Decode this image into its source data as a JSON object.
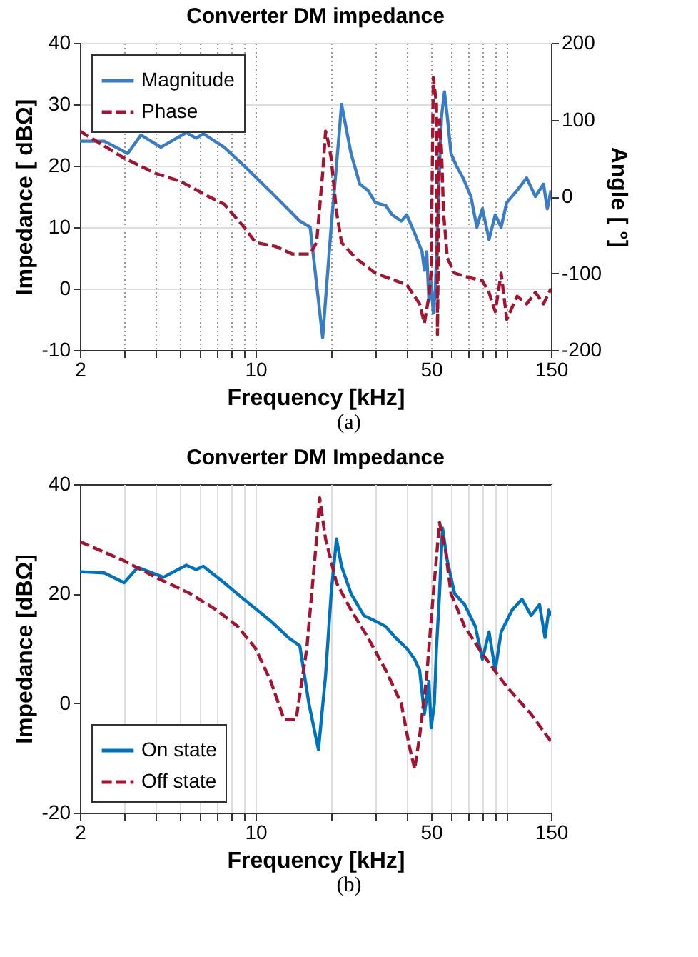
{
  "chart_data": [
    {
      "type": "line",
      "title": "Converter DM impedance",
      "xlabel": "Frequency [kHz]",
      "ylabel": "Impedance  [  dBΩ]",
      "y2label": "Angle  [  °]",
      "log": "x",
      "grid": true,
      "legend": "top left",
      "annotations": [
        "(a)"
      ],
      "xlim": [
        2,
        150
      ],
      "xticks": [
        2,
        {
          "value": 3,
          "label": null
        },
        {
          "value": 4,
          "label": null
        },
        {
          "value": 5,
          "label": null
        },
        {
          "value": 6,
          "label": null
        },
        {
          "value": 7,
          "label": null
        },
        {
          "value": 8,
          "label": null
        },
        {
          "value": 9,
          "label": null
        },
        10,
        {
          "value": 20,
          "label": null
        },
        {
          "value": 30,
          "label": null
        },
        {
          "value": 40,
          "label": null
        },
        50,
        {
          "value": 60,
          "label": null
        },
        {
          "value": 70,
          "label": null
        },
        {
          "value": 80,
          "label": null
        },
        {
          "value": 90,
          "label": null
        },
        {
          "value": 100,
          "label": null
        },
        150
      ],
      "ylim": [
        -10,
        40
      ],
      "yticks": [
        -10,
        0,
        10,
        20,
        30,
        40
      ],
      "y2lim": [
        -200,
        200
      ],
      "y2ticks": [
        -200,
        -100,
        0,
        100,
        200
      ],
      "series": [
        {
          "name": "Magnitude",
          "color": "#3a7dc4",
          "line_style": "solid",
          "x": [
            2,
            2.5,
            3.1,
            3.5,
            4.2,
            5.3,
            5.8,
            6.2,
            7.5,
            9,
            12,
            15,
            16.5,
            18.5,
            20,
            21.5,
            22,
            24,
            26,
            28,
            30,
            33,
            35,
            38,
            40,
            43,
            46,
            47,
            48,
            49,
            50,
            51,
            52,
            53,
            54,
            55,
            56.5,
            58,
            60,
            63,
            67,
            72,
            76,
            80,
            85,
            90,
            95,
            100,
            110,
            120,
            130,
            140,
            145,
            150
          ],
          "values": [
            24,
            24,
            22,
            25,
            23,
            25.4,
            24.5,
            25.2,
            23,
            20,
            15,
            11,
            10,
            -8,
            10,
            25,
            30,
            22,
            17,
            16,
            14,
            13.5,
            12,
            11,
            12,
            9,
            6,
            3,
            6,
            -2,
            1,
            -4,
            0,
            10,
            20,
            28,
            32,
            28,
            22,
            20,
            18,
            15,
            10,
            13,
            8,
            12,
            10,
            14,
            16,
            18,
            15,
            17,
            13,
            16
          ]
        },
        {
          "name": "Phase",
          "color": "#a2142f",
          "line_style": "dashed",
          "axis": "y2",
          "x": [
            2,
            3,
            4,
            5,
            6.5,
            7.5,
            9,
            10,
            12,
            14,
            16.5,
            17.5,
            18.5,
            19,
            19.5,
            20,
            21,
            22,
            25,
            30,
            40,
            45,
            47,
            49,
            50,
            51,
            52.5,
            53,
            54,
            55,
            56,
            58,
            62,
            70,
            80,
            85,
            90,
            95,
            100,
            110,
            120,
            130,
            140,
            150
          ],
          "values": [
            85,
            50,
            30,
            20,
            0,
            -10,
            -40,
            -60,
            -65,
            -75,
            -75,
            -60,
            30,
            85,
            70,
            50,
            -20,
            -60,
            -80,
            -100,
            -115,
            -140,
            -165,
            -130,
            -100,
            155,
            120,
            -180,
            100,
            60,
            -20,
            -80,
            -100,
            -105,
            -110,
            -125,
            -150,
            -100,
            -160,
            -130,
            -140,
            -125,
            -140,
            -120
          ]
        }
      ]
    },
    {
      "type": "line",
      "title": "Converter DM Impedance",
      "xlabel": "Frequency [kHz]",
      "ylabel": "Impedance [dBΩ]",
      "log": "x",
      "grid": "x",
      "legend": "bottom left",
      "annotations": [
        "(b)"
      ],
      "xlim": [
        2,
        150
      ],
      "xticks": [
        2,
        {
          "value": 3,
          "label": null
        },
        {
          "value": 4,
          "label": null
        },
        {
          "value": 5,
          "label": null
        },
        {
          "value": 6,
          "label": null
        },
        {
          "value": 7,
          "label": null
        },
        {
          "value": 8,
          "label": null
        },
        {
          "value": 9,
          "label": null
        },
        10,
        {
          "value": 20,
          "label": null
        },
        {
          "value": 30,
          "label": null
        },
        {
          "value": 40,
          "label": null
        },
        50,
        {
          "value": 60,
          "label": null
        },
        {
          "value": 70,
          "label": null
        },
        {
          "value": 80,
          "label": null
        },
        {
          "value": 90,
          "label": null
        },
        {
          "value": 100,
          "label": null
        },
        150
      ],
      "ylim": [
        -20,
        40
      ],
      "yticks": [
        -20,
        0,
        20,
        40
      ],
      "series": [
        {
          "name": "On state",
          "color": "#0072bd",
          "line_style": "solid",
          "x": [
            2,
            2.5,
            3,
            3.4,
            4.3,
            5.3,
            5.8,
            6.2,
            7.5,
            8.7,
            11.5,
            13.5,
            15,
            16.3,
            17.8,
            19,
            20,
            21,
            22,
            24,
            27,
            30,
            33,
            36,
            40,
            43,
            45,
            47,
            49,
            50,
            51.5,
            52.5,
            54,
            55.5,
            58,
            62,
            68,
            75,
            80,
            85,
            90,
            95,
            105,
            115,
            125,
            135,
            142,
            147,
            150
          ],
          "values": [
            24,
            23.8,
            22,
            24.8,
            23,
            25.2,
            24.4,
            25,
            22,
            19.5,
            15,
            12,
            10.5,
            0,
            -8.5,
            5,
            20,
            30,
            25,
            20,
            16,
            15,
            14,
            12,
            10,
            8,
            6,
            -2,
            4,
            -4.5,
            0,
            10,
            20,
            32,
            26,
            20,
            18,
            14,
            8,
            13,
            6,
            13,
            17,
            19,
            16,
            18,
            12,
            17,
            16
          ]
        },
        {
          "name": "Off state",
          "color": "#a2142f",
          "line_style": "dashed",
          "x": [
            2,
            3,
            4,
            5.5,
            7,
            8.5,
            10,
            11.5,
            13,
            14.5,
            16,
            17.5,
            18,
            19,
            21,
            24,
            28,
            33,
            38,
            41,
            43,
            45,
            48,
            51,
            54,
            57,
            60,
            68,
            80,
            100,
            125,
            150
          ],
          "values": [
            29.5,
            26,
            23,
            20,
            17,
            14,
            10,
            4,
            -3,
            -3,
            10,
            30,
            37.5,
            30,
            22,
            17,
            12,
            6,
            0,
            -8,
            -12,
            -6,
            5,
            20,
            33,
            28,
            20,
            14,
            9,
            3,
            -2,
            -7
          ]
        }
      ]
    }
  ]
}
